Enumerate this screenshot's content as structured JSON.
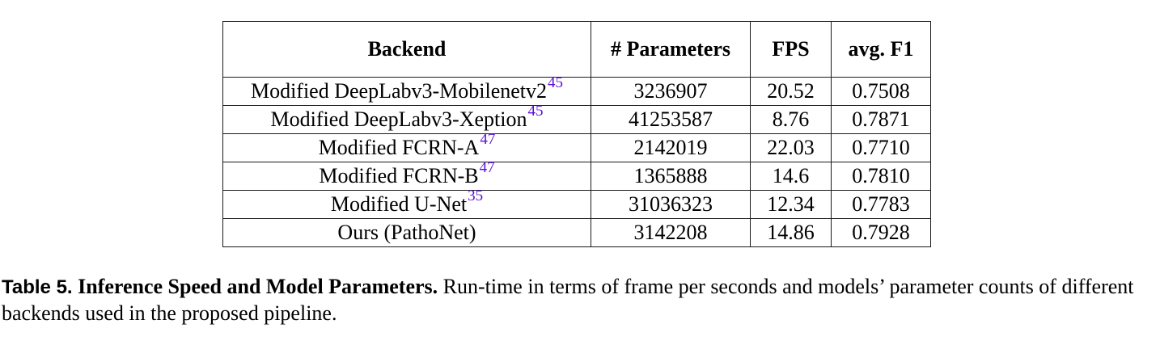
{
  "table": {
    "headers": [
      "Backend",
      "# Parameters",
      "FPS",
      "avg. F1"
    ],
    "rows": [
      {
        "backend": "Modified DeepLabv3-Mobilenetv2",
        "ref": "45",
        "params": "3236907",
        "fps": "20.52",
        "f1": "0.7508"
      },
      {
        "backend": "Modified DeepLabv3-Xeption",
        "ref": "45",
        "params": "41253587",
        "fps": "8.76",
        "f1": "0.7871"
      },
      {
        "backend": "Modified FCRN-A",
        "ref": "47",
        "params": "2142019",
        "fps": "22.03",
        "f1": "0.7710"
      },
      {
        "backend": "Modified FCRN-B",
        "ref": "47",
        "params": "1365888",
        "fps": "14.6",
        "f1": "0.7810"
      },
      {
        "backend": "Modified U-Net",
        "ref": "35",
        "params": "31036323",
        "fps": "12.34",
        "f1": "0.7783"
      },
      {
        "backend": "Ours (PathoNet)",
        "ref": "",
        "params": "3142208",
        "fps": "14.86",
        "f1": "0.7928"
      }
    ]
  },
  "caption": {
    "label": "Table 5.",
    "title": "Inference Speed and Model Parameters.",
    "text": "Run-time in terms of frame per seconds and models’ parameter counts of different backends used in the proposed pipeline."
  },
  "colors": {
    "citation": "#5a0fd6",
    "border": "#1a1a1a"
  }
}
